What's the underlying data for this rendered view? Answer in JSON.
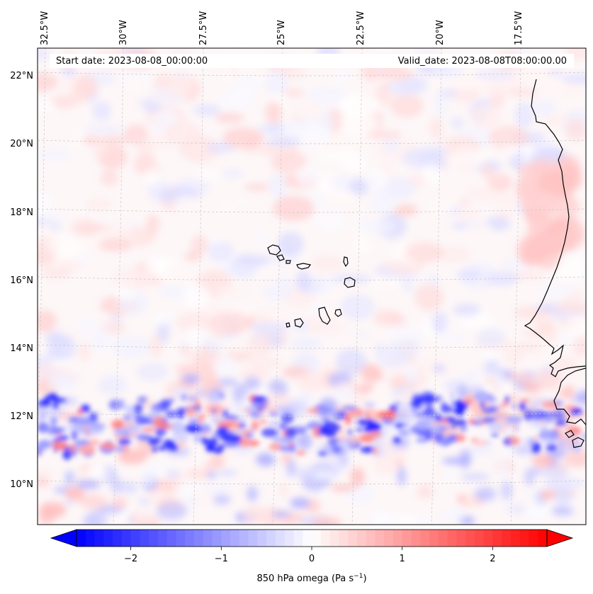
{
  "header": {
    "start_date": "Start date: 2023-08-08_00:00:00",
    "valid_date": "Valid_date: 2023-08-08T08:00:00.00"
  },
  "lon_labels": [
    "32.5°W",
    "30°W",
    "27.5°W",
    "25°W",
    "22.5°W",
    "20°W",
    "17.5°W"
  ],
  "lat_labels": [
    "22°N",
    "20°N",
    "18°N",
    "16°N",
    "14°N",
    "12°N",
    "10°N"
  ],
  "colorbar": {
    "min": -2.6,
    "max": 2.6,
    "ticks": [
      -2,
      -1,
      0,
      1,
      2
    ],
    "tick_labels": [
      "−2",
      "−1",
      "0",
      "1",
      "2"
    ],
    "label": "850 hPa omega (Pa s",
    "label_exp": "−1",
    "label_close": ")",
    "low_color": "#0000ff",
    "mid_color": "#ffffff",
    "high_color": "#ff0000"
  },
  "colors": {
    "frame": "#000000",
    "gridline": "#c8c8c8",
    "coastline": "#000000"
  }
}
